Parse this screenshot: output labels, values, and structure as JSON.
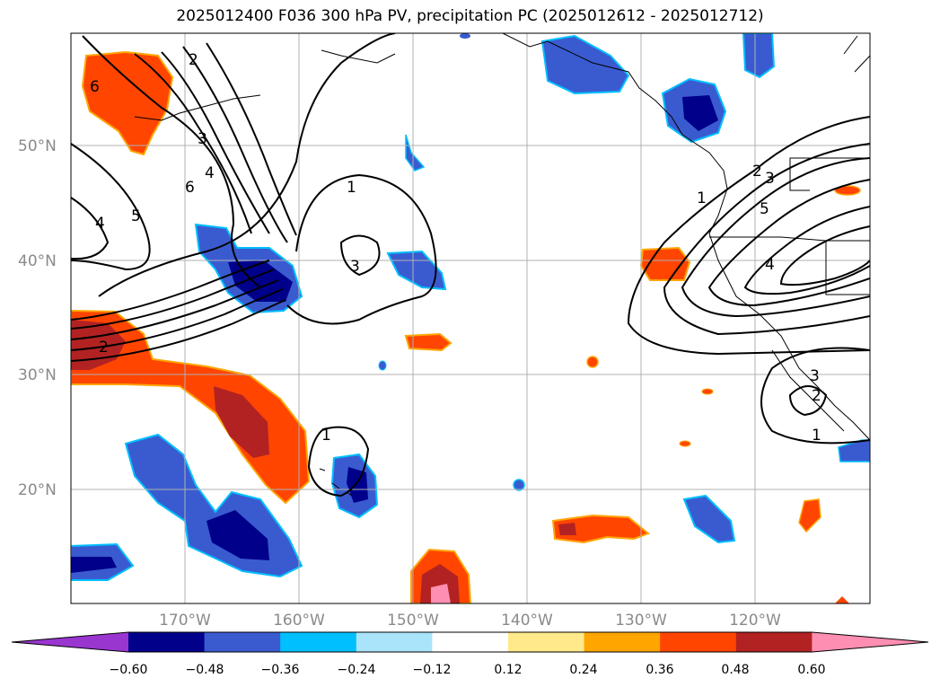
{
  "title": "2025012400 F036 300 hPa PV, precipitation PC (2025012612 - 2025012712)",
  "map": {
    "lat_labels": [
      "50°N",
      "40°N",
      "30°N",
      "20°N"
    ],
    "lon_labels": [
      "170°W",
      "160°W",
      "150°W",
      "140°W",
      "130°W",
      "120°W"
    ],
    "extent": {
      "lon": [
        -180,
        -110
      ],
      "lat": [
        10,
        60
      ]
    }
  },
  "colorbar": {
    "ticks": [
      "−0.60",
      "−0.48",
      "−0.36",
      "−0.24",
      "−0.12",
      "0.12",
      "0.24",
      "0.36",
      "0.48",
      "0.60"
    ],
    "colors": [
      "#9a36d0",
      "#00008b",
      "#3a5bd0",
      "#00bfff",
      "#a9e4fa",
      "#ffffff",
      "#ffe98a",
      "#ffa500",
      "#ff4500",
      "#b22222",
      "#ff8fb2"
    ]
  },
  "contour_labels": [
    "2",
    "3",
    "4",
    "6",
    "5",
    "4",
    "6",
    "1",
    "3",
    "2",
    "1",
    "2",
    "3",
    "5",
    "4",
    "3",
    "2",
    "1",
    "1"
  ]
}
